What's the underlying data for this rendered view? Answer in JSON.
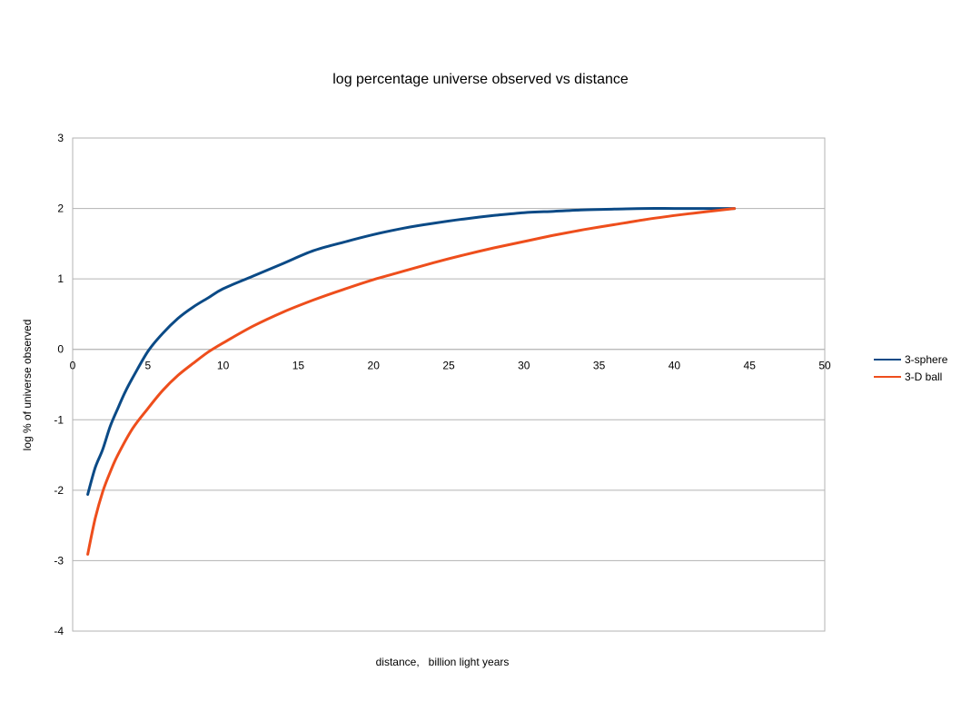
{
  "chart_data": {
    "type": "line",
    "title": "log percentage universe observed vs distance",
    "xlabel": "distance,   billion light years",
    "ylabel": "log % of universe observed",
    "xlim": [
      0,
      50
    ],
    "ylim": [
      -4,
      3
    ],
    "x_ticks": [
      0,
      5,
      10,
      15,
      20,
      25,
      30,
      35,
      40,
      45,
      50
    ],
    "y_ticks": [
      3,
      2,
      1,
      0,
      -1,
      -2,
      -3,
      -4
    ],
    "grid": "horizontal",
    "legend_position": "right",
    "series": [
      {
        "name": "3-sphere",
        "color": "#0b4a86",
        "x": [
          1,
          1.5,
          2,
          2.5,
          3,
          3.5,
          4,
          5,
          6,
          7,
          8,
          9,
          10,
          12,
          14,
          16,
          18,
          20,
          22,
          24,
          26,
          28,
          30,
          32,
          34,
          36,
          38,
          40,
          42,
          44
        ],
        "y": [
          -2.06,
          -1.68,
          -1.42,
          -1.09,
          -0.84,
          -0.6,
          -0.4,
          -0.03,
          0.23,
          0.44,
          0.6,
          0.73,
          0.86,
          1.04,
          1.22,
          1.4,
          1.52,
          1.63,
          1.72,
          1.79,
          1.85,
          1.9,
          1.94,
          1.96,
          1.98,
          1.99,
          2.0,
          2.0,
          2.0,
          2.0
        ]
      },
      {
        "name": "3-D ball",
        "color": "#ee4e1c",
        "x": [
          1,
          1.5,
          2,
          2.5,
          3,
          4,
          5,
          6,
          7,
          8,
          9,
          10,
          12,
          14,
          16,
          18,
          20,
          22,
          24,
          26,
          28,
          30,
          32,
          34,
          36,
          38,
          40,
          42,
          44
        ],
        "y": [
          -2.91,
          -2.4,
          -2.02,
          -1.74,
          -1.5,
          -1.12,
          -0.84,
          -0.58,
          -0.37,
          -0.2,
          -0.04,
          0.09,
          0.33,
          0.53,
          0.7,
          0.85,
          0.99,
          1.11,
          1.23,
          1.34,
          1.44,
          1.53,
          1.62,
          1.7,
          1.77,
          1.84,
          1.9,
          1.95,
          2.0
        ]
      }
    ]
  }
}
